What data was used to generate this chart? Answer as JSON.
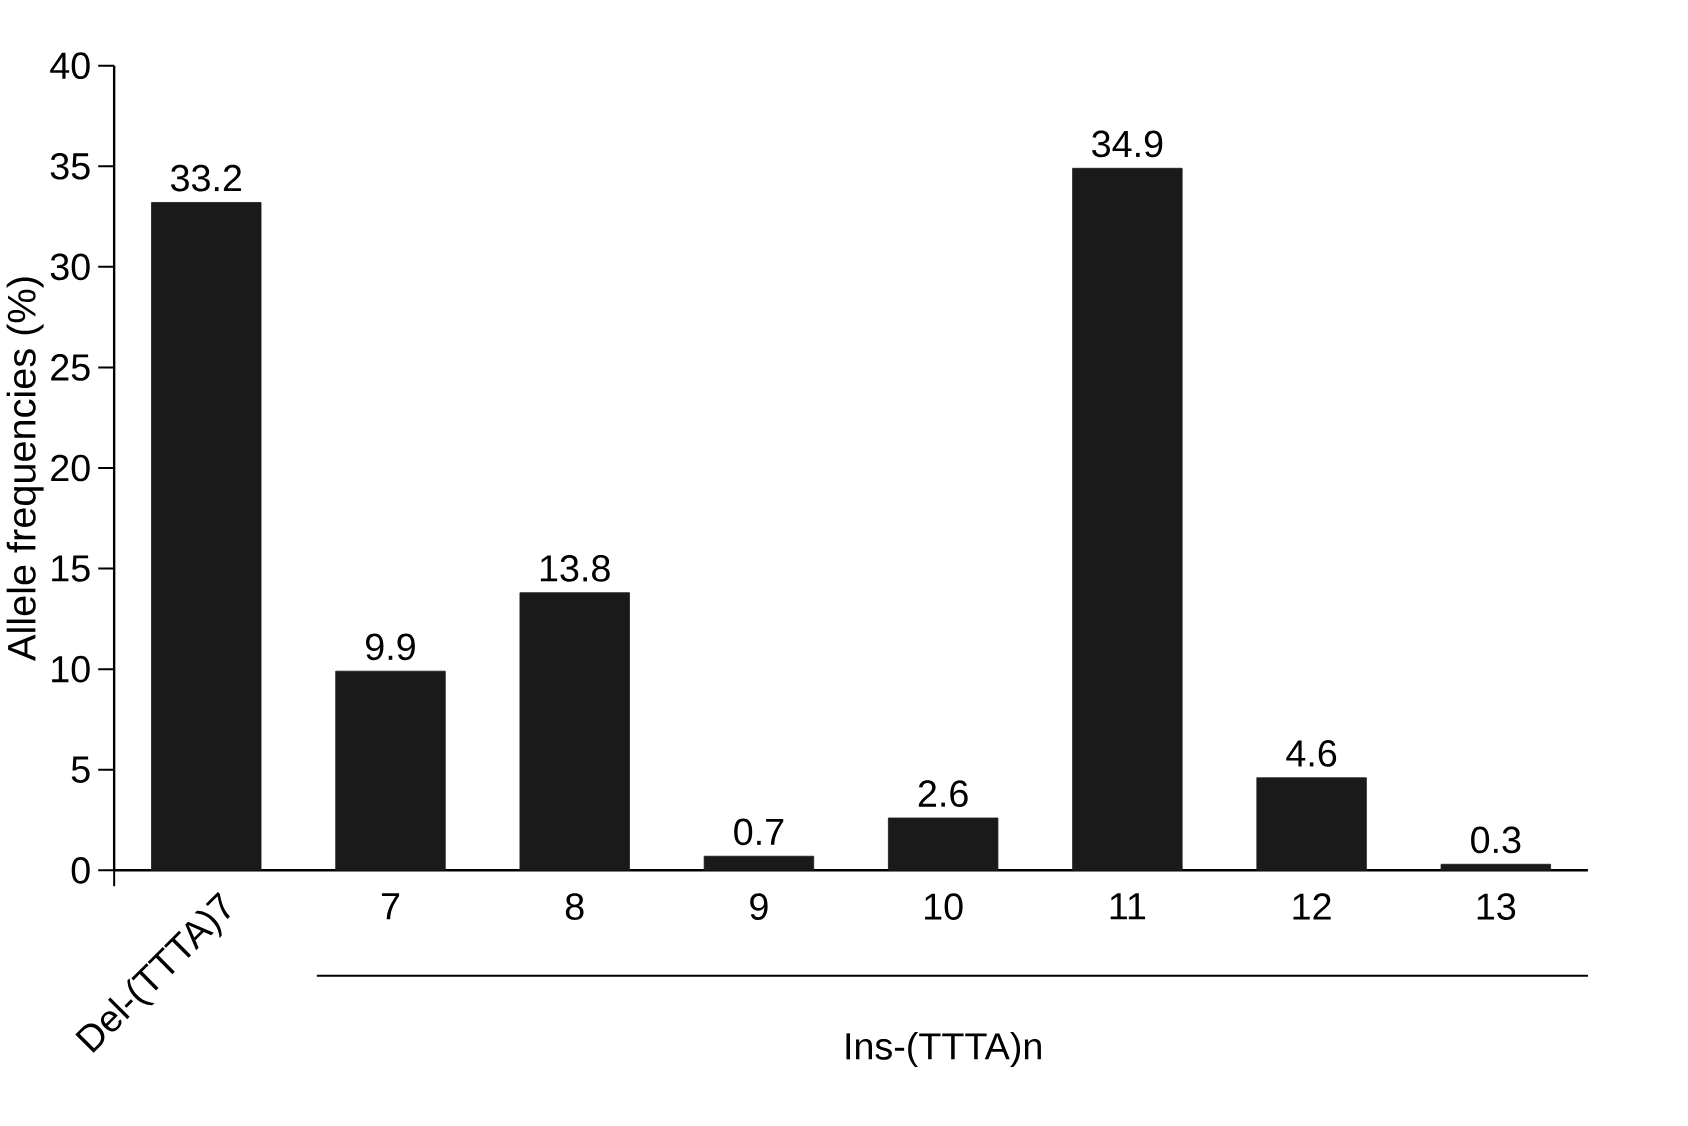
{
  "chart_data": {
    "type": "bar",
    "ylabel": "Allele frequencies (%)",
    "categories": [
      "Del-(TTTA)7",
      "7",
      "8",
      "9",
      "10",
      "11",
      "12",
      "13"
    ],
    "values": [
      33.2,
      9.9,
      13.8,
      0.7,
      2.6,
      34.9,
      4.6,
      0.3
    ],
    "color": "#1a1a1a",
    "ylim": [
      0,
      40
    ],
    "yticks": [
      0,
      5,
      10,
      15,
      20,
      25,
      30,
      35,
      40
    ],
    "data_labels": true,
    "grid": false,
    "annotations": [
      "Ins-(TTTA)n"
    ]
  }
}
